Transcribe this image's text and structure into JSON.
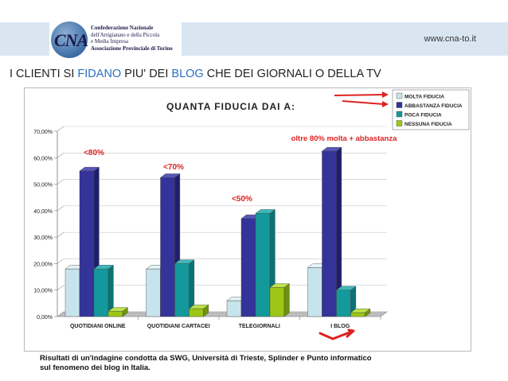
{
  "header": {
    "logo_text": "CNA",
    "logo_lines": [
      "Confederazione Nazionale",
      "dell'Artigianato e della Piccola",
      "e Media Impresa",
      "Associazione Provinciale di Torino"
    ],
    "site_url": "www.cna-to.it"
  },
  "page_title": {
    "part1": "I CLIENTI SI ",
    "part2": "FIDANO",
    "part3": " PIU' DEI ",
    "part4": "BLOG",
    "part5": " CHE DEI GIORNALI O DELLA TV"
  },
  "colors": {
    "molta": "#c7e4ec",
    "abbastanza": "#33339a",
    "poca": "#13999b",
    "nessuna": "#9cc716",
    "annotation_red": "#dd2222",
    "title_highlight": "#2a6fc2"
  },
  "chart_data": {
    "type": "bar",
    "title": "QUANTA FIDUCIA DAI A:",
    "categories": [
      "QUOTIDIANI ONLINE",
      "QUOTIDIANI CARTACEI",
      "TELEGIORNALI",
      "I BLOG"
    ],
    "series": [
      {
        "name": "MOLTA FIDUCIA",
        "values": [
          18,
          18,
          6,
          18.5
        ]
      },
      {
        "name": "ABBASTANZA FIDUCIA",
        "values": [
          55,
          52.5,
          37,
          62.5
        ]
      },
      {
        "name": "POCA FIDUCIA",
        "values": [
          18,
          20,
          39,
          10
        ]
      },
      {
        "name": "NESSUNA FIDUCIA",
        "values": [
          2,
          3,
          11,
          1.5
        ]
      }
    ],
    "y_ticks": [
      "0,00%",
      "10,00%",
      "20,00%",
      "30,00%",
      "40,00%",
      "50,00%",
      "60,00%",
      "70,00%"
    ],
    "ylim": [
      0,
      70
    ],
    "grid": true,
    "legend_position": "top-right",
    "annotations": {
      "cat_labels": [
        "<80%",
        "<70%",
        "<50%"
      ],
      "blog_note": "oltre 80% molta + abbastanza"
    }
  },
  "footnote": {
    "line1": "Risultati di un'indagine condotta da SWG, Università di Trieste, Splinder e Punto informatico",
    "line2": "sul fenomeno dei blog in Italia."
  }
}
